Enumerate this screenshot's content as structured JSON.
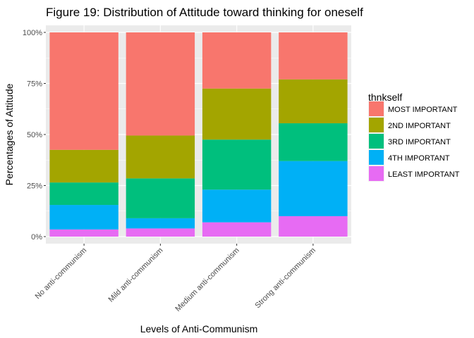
{
  "chart_data": {
    "type": "bar",
    "stacked": true,
    "title": "Figure 19: Distribution of Attitude toward thinking for oneself",
    "xlabel": "Levels of Anti-Communism",
    "ylabel": "Percentages of Attitude",
    "ylim": [
      0,
      1
    ],
    "yticks": [
      0,
      0.25,
      0.5,
      0.75,
      1
    ],
    "ytick_labels": [
      "0%",
      "25%",
      "50%",
      "75%",
      "100%"
    ],
    "grid": true,
    "legend": {
      "title": "thnkself",
      "position": "right"
    },
    "categories": [
      "No anti-communism",
      "Mild anti-communism",
      "Medium anti-communism",
      "Strong anti-communism"
    ],
    "series": [
      {
        "name": "LEAST IMPORTANT",
        "color": "#e76bf3",
        "values": [
          0.035,
          0.04,
          0.07,
          0.1
        ]
      },
      {
        "name": "4TH IMPORTANT",
        "color": "#00b0f6",
        "values": [
          0.12,
          0.05,
          0.16,
          0.27
        ]
      },
      {
        "name": "3RD IMPORTANT",
        "color": "#00bf7d",
        "values": [
          0.11,
          0.195,
          0.245,
          0.185
        ]
      },
      {
        "name": "2ND IMPORTANT",
        "color": "#a3a500",
        "values": [
          0.16,
          0.21,
          0.25,
          0.215
        ]
      },
      {
        "name": "MOST IMPORTANT",
        "color": "#f8766d",
        "values": [
          0.575,
          0.505,
          0.275,
          0.23
        ]
      }
    ]
  }
}
